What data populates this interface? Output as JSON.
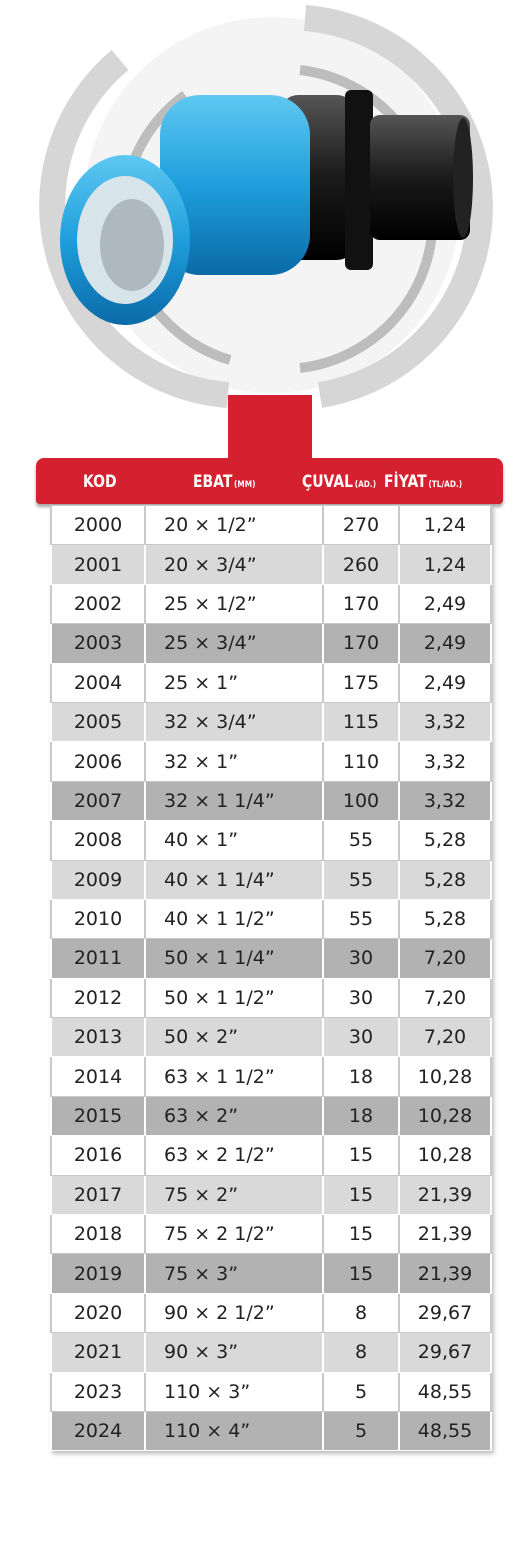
{
  "header": {
    "columns": [
      {
        "label": "KOD"
      },
      {
        "label": "EBAT",
        "unit": "(MM)"
      },
      {
        "label": "ÇUVAL",
        "unit": "(AD.)"
      },
      {
        "label": "FİYAT",
        "unit": "(TL/AD.)"
      }
    ]
  },
  "table": {
    "rows": [
      [
        "2000",
        "20 × 1/2”",
        270,
        "1,24"
      ],
      [
        "2001",
        "20 × 3/4”",
        260,
        "1,24"
      ],
      [
        "2002",
        "25 × 1/2”",
        170,
        "2,49"
      ],
      [
        "2003",
        "25 × 3/4”",
        170,
        "2,49"
      ],
      [
        "2004",
        "25 × 1”",
        175,
        "2,49"
      ],
      [
        "2005",
        "32 × 3/4”",
        115,
        "3,32"
      ],
      [
        "2006",
        "32 × 1”",
        110,
        "3,32"
      ],
      [
        "2007",
        "32 × 1 1/4”",
        100,
        "3,32"
      ],
      [
        "2008",
        "40 × 1”",
        55,
        "5,28"
      ],
      [
        "2009",
        "40 × 1 1/4”",
        55,
        "5,28"
      ],
      [
        "2010",
        "40 × 1 1/2”",
        55,
        "5,28"
      ],
      [
        "2011",
        "50 × 1 1/4”",
        30,
        "7,20"
      ],
      [
        "2012",
        "50 × 1 1/2”",
        30,
        "7,20"
      ],
      [
        "2013",
        "50 × 2”",
        30,
        "7,20"
      ],
      [
        "2014",
        "63 × 1 1/2”",
        18,
        "10,28"
      ],
      [
        "2015",
        "63 × 2”",
        18,
        "10,28"
      ],
      [
        "2016",
        "63 × 2 1/2”",
        15,
        "10,28"
      ],
      [
        "2017",
        "75 × 2”",
        15,
        "21,39"
      ],
      [
        "2018",
        "75 × 2 1/2”",
        15,
        "21,39"
      ],
      [
        "2019",
        "75 × 3”",
        15,
        "21,39"
      ],
      [
        "2020",
        "90 × 2 1/2”",
        8,
        "29,67"
      ],
      [
        "2021",
        "90 × 3”",
        8,
        "29,67"
      ],
      [
        "2023",
        "110 × 3”",
        5,
        "48,55"
      ],
      [
        "2024",
        "110 × 4”",
        5,
        "48,55"
      ]
    ]
  }
}
